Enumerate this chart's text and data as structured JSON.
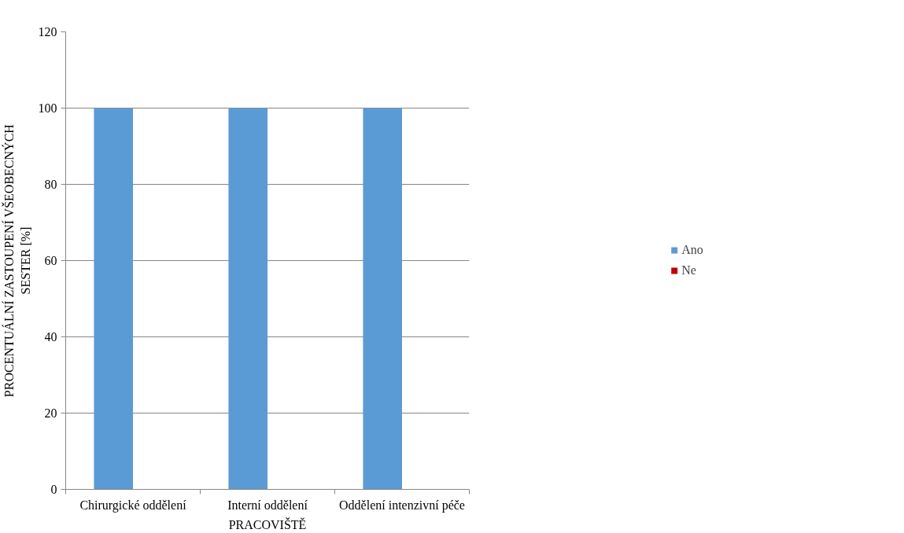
{
  "chart_data": {
    "type": "bar",
    "xlabel": "PRACOVIŠTĚ",
    "ylabel": "PROCENTUÁLNÍ ZASTOUPENÍ VŠEOBECNÝCH SESTER [%]",
    "categories": [
      "Chirurgické oddělení",
      "Interní oddělení",
      "Oddělení intenzivní péče"
    ],
    "series": [
      {
        "name": "Ano",
        "color": "#5b9bd5",
        "values": [
          100,
          100,
          100
        ]
      },
      {
        "name": "Ne",
        "color": "#c00000",
        "values": [
          0,
          0,
          0
        ]
      }
    ],
    "ylim": [
      0,
      120
    ],
    "yticks": [
      0,
      20,
      40,
      60,
      80,
      100,
      120
    ],
    "grid": "y",
    "legend": "right"
  }
}
